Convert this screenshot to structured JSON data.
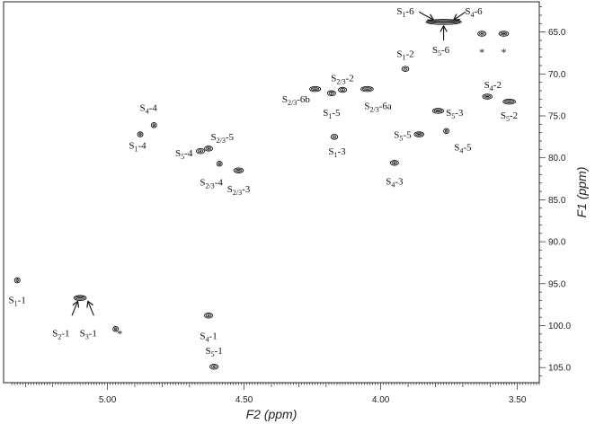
{
  "chart_data": {
    "type": "scatter",
    "xlabel": "F2 (ppm)",
    "ylabel": "F1 (ppm)",
    "x_reversed": true,
    "xlim": [
      5.38,
      3.42
    ],
    "ylim": [
      61.4,
      106.8
    ],
    "x_ticks": [
      "5.00",
      "4.50",
      "4.00",
      "3.50"
    ],
    "y_ticks": [
      "65.0",
      "70.0",
      "75.0",
      "80.0",
      "85.0",
      "90.0",
      "95.0",
      "100.0",
      "105.0"
    ],
    "peaks": [
      {
        "x": 5.33,
        "y": 94.6,
        "w": 0.016,
        "label": "S1-1"
      },
      {
        "x": 5.1,
        "y": 96.7,
        "w": 0.045,
        "label": "S2-1"
      },
      {
        "x": 4.97,
        "y": 100.4,
        "w": 0.01,
        "label": "*"
      },
      {
        "x": 4.63,
        "y": 98.8,
        "w": 0.03,
        "label": "S4-1"
      },
      {
        "x": 4.61,
        "y": 104.9,
        "w": 0.03,
        "label": "S5-1"
      },
      {
        "x": 4.88,
        "y": 77.2,
        "w": 0.012,
        "label": "S1-4"
      },
      {
        "x": 4.83,
        "y": 76.1,
        "w": 0.014,
        "label": "S4-4"
      },
      {
        "x": 4.66,
        "y": 79.2,
        "w": 0.03,
        "label": "S5-4"
      },
      {
        "x": 4.63,
        "y": 78.9,
        "w": 0.03,
        "label": "S2/3-5"
      },
      {
        "x": 4.59,
        "y": 80.7,
        "w": 0.018,
        "label": "S2/3-4"
      },
      {
        "x": 4.52,
        "y": 81.5,
        "w": 0.035,
        "label": "S2/3-3"
      },
      {
        "x": 4.24,
        "y": 71.8,
        "w": 0.04,
        "label": "S2/3-6b"
      },
      {
        "x": 4.18,
        "y": 72.3,
        "w": 0.03,
        "label": "S1-5"
      },
      {
        "x": 4.14,
        "y": 71.9,
        "w": 0.03,
        "label": "S2/3-2"
      },
      {
        "x": 4.05,
        "y": 71.8,
        "w": 0.045,
        "label": "S2/3-6a"
      },
      {
        "x": 4.17,
        "y": 77.5,
        "w": 0.025,
        "label": "S1-3"
      },
      {
        "x": 3.95,
        "y": 80.6,
        "w": 0.03,
        "label": "S4-3"
      },
      {
        "x": 3.91,
        "y": 69.4,
        "w": 0.025,
        "label": "S1-2"
      },
      {
        "x": 3.86,
        "y": 77.2,
        "w": 0.035,
        "label": "S5-5"
      },
      {
        "x": 3.79,
        "y": 74.4,
        "w": 0.04,
        "label": "S5-3"
      },
      {
        "x": 3.76,
        "y": 76.8,
        "w": 0.012,
        "label": "S4-5"
      },
      {
        "x": 3.77,
        "y": 63.8,
        "w": 0.13,
        "label": "S5-6"
      },
      {
        "x": 3.63,
        "y": 65.2,
        "w": 0.03,
        "label": "*"
      },
      {
        "x": 3.55,
        "y": 65.2,
        "w": 0.035,
        "label": "*"
      },
      {
        "x": 3.61,
        "y": 72.7,
        "w": 0.035,
        "label": "S4-2"
      },
      {
        "x": 3.53,
        "y": 73.3,
        "w": 0.045,
        "label": "S5-2"
      }
    ],
    "annotations": [
      {
        "label": "S1-1",
        "x": 5.33,
        "y": 97.3
      },
      {
        "label": "S2-1",
        "x": 5.17,
        "y": 101.3
      },
      {
        "label": "S3-1",
        "x": 5.07,
        "y": 101.3
      },
      {
        "label": "*",
        "x": 4.955,
        "y": 101.4
      },
      {
        "label": "S4-1",
        "x": 4.63,
        "y": 101.6
      },
      {
        "label": "S5-1",
        "x": 4.61,
        "y": 103.4
      },
      {
        "label": "S4-4",
        "x": 4.85,
        "y": 74.4
      },
      {
        "label": "S1-4",
        "x": 4.89,
        "y": 78.9
      },
      {
        "label": "S5-4",
        "x": 4.72,
        "y": 79.8
      },
      {
        "label": "S2/3-5",
        "x": 4.58,
        "y": 77.9
      },
      {
        "label": "S2/3-4",
        "x": 4.62,
        "y": 83.3
      },
      {
        "label": "S2/3-3",
        "x": 4.52,
        "y": 84.1
      },
      {
        "label": "S2/3-6b",
        "x": 4.31,
        "y": 73.4
      },
      {
        "label": "S2/3-2",
        "x": 4.14,
        "y": 70.9
      },
      {
        "label": "S1-5",
        "x": 4.18,
        "y": 75.0
      },
      {
        "label": "S2/3-6a",
        "x": 4.01,
        "y": 74.2
      },
      {
        "label": "S1-3",
        "x": 4.16,
        "y": 79.6
      },
      {
        "label": "S4-3",
        "x": 3.95,
        "y": 83.2
      },
      {
        "label": "S1-2",
        "x": 3.91,
        "y": 68.0
      },
      {
        "label": "S5-5",
        "x": 3.92,
        "y": 77.6
      },
      {
        "label": "S5-3",
        "x": 3.73,
        "y": 75.0
      },
      {
        "label": "S4-5",
        "x": 3.7,
        "y": 79.1
      },
      {
        "label": "S1-6",
        "x": 3.91,
        "y": 62.9
      },
      {
        "label": "S4-6",
        "x": 3.66,
        "y": 62.9
      },
      {
        "label": "S5-6",
        "x": 3.78,
        "y": 67.5
      },
      {
        "label": "*",
        "x": 3.63,
        "y": 67.8
      },
      {
        "label": "*",
        "x": 3.55,
        "y": 67.8
      },
      {
        "label": "S4-2",
        "x": 3.59,
        "y": 71.7
      },
      {
        "label": "S5-2",
        "x": 3.53,
        "y": 75.3
      }
    ],
    "arrows": [
      {
        "from": [
          5.13,
          98.8
        ],
        "to": [
          5.11,
          97.2
        ]
      },
      {
        "from": [
          5.05,
          98.8
        ],
        "to": [
          5.07,
          97.2
        ]
      },
      {
        "from": [
          3.86,
          62.6
        ],
        "to": [
          3.81,
          63.5
        ]
      },
      {
        "from": [
          3.69,
          62.6
        ],
        "to": [
          3.73,
          63.5
        ]
      },
      {
        "from": [
          3.77,
          66.0
        ],
        "to": [
          3.77,
          64.4
        ]
      }
    ]
  }
}
